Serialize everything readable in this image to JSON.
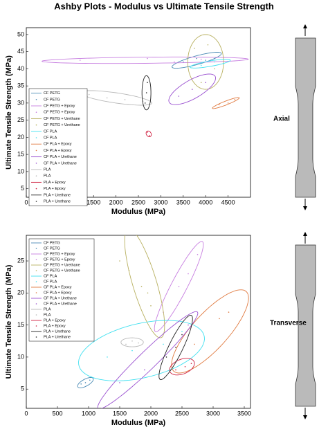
{
  "title": "Ashby Plots - Modulus vs Ultimate Tensile Strength",
  "chart_data": [
    {
      "type": "scatter",
      "label": "Axial",
      "x_label": "Modulus (MPa)",
      "y_label": "Ultimate Tensile Strength (MPa)",
      "xlim": [
        0,
        5000
      ],
      "ylim": [
        2.5,
        52
      ],
      "xticks": [
        0,
        500,
        1000,
        1500,
        2000,
        2500,
        3000,
        3500,
        4000,
        4500
      ],
      "yticks": [
        5,
        10,
        15,
        20,
        25,
        30,
        35,
        40,
        45,
        50
      ],
      "series": [
        {
          "name": "CF PETG",
          "color": "#4a8ab5",
          "x": [
            3500,
            3800,
            4000,
            4200
          ],
          "values": [
            42,
            43,
            42.5,
            43
          ],
          "ellipse": {
            "cx": 3800,
            "cy": 42.5,
            "ax": 550,
            "ay": 2,
            "bx": -30,
            "by": 1.2
          }
        },
        {
          "name": "CF PETG + Epoxy",
          "color": "#c77ee0",
          "x": [
            1200,
            2700,
            3300,
            3900
          ],
          "values": [
            42.5,
            43,
            42,
            42.8
          ],
          "ellipse": {
            "cx": 2650,
            "cy": 42.5,
            "ax": 2300,
            "ay": 0.3,
            "bx": 0,
            "by": 0.9
          }
        },
        {
          "name": "CF PETG + Urethane",
          "color": "#b8b060",
          "x": [
            3750,
            4050,
            4200,
            3900
          ],
          "values": [
            46,
            47,
            40,
            36
          ],
          "ellipse": {
            "cx": 4000,
            "cy": 42,
            "ax": 400,
            "ay": 0,
            "bx": 0,
            "by": 8
          }
        },
        {
          "name": "CF PLA",
          "color": "#40e0f0",
          "x": [
            3900,
            4200,
            4400
          ],
          "values": [
            41,
            42,
            41.5
          ],
          "ellipse": {
            "cx": 4100,
            "cy": 41.5,
            "ax": 450,
            "ay": 1,
            "bx": 0,
            "by": 0.8
          }
        },
        {
          "name": "CF PLA + Epoxy",
          "color": "#e07a40",
          "x": [
            4300,
            4500,
            4650
          ],
          "values": [
            29.5,
            30,
            31
          ],
          "ellipse": {
            "cx": 4450,
            "cy": 30,
            "ax": 300,
            "ay": 1.5,
            "bx": 0,
            "by": 0.6
          }
        },
        {
          "name": "CF PLA + Urethane",
          "color": "#9a50d0",
          "x": [
            3400,
            3700,
            4000
          ],
          "values": [
            32,
            34,
            36
          ],
          "ellipse": {
            "cx": 3700,
            "cy": 34,
            "ax": 500,
            "ay": 4,
            "bx": -150,
            "by": 2
          }
        },
        {
          "name": "PLA",
          "color": "#b8b8b8",
          "x": [
            1400,
            1800,
            2200,
            2600
          ],
          "values": [
            32.5,
            31.5,
            31,
            30.5
          ],
          "ellipse": {
            "cx": 2000,
            "cy": 31.5,
            "ax": 800,
            "ay": -1.5,
            "bx": 0,
            "by": 1.5
          }
        },
        {
          "name": "PLA + Epoxy",
          "color": "#d02040",
          "x": [
            2700,
            2750
          ],
          "values": [
            21.5,
            20.5
          ],
          "ellipse": {
            "cx": 2730,
            "cy": 21,
            "ax": 50,
            "ay": -0.6,
            "bx": 30,
            "by": 0.6
          }
        },
        {
          "name": "PLA + Urethane",
          "color": "#202020",
          "x": [
            2650,
            2700,
            2680
          ],
          "values": [
            30,
            36,
            33
          ],
          "ellipse": {
            "cx": 2680,
            "cy": 33,
            "ax": 0,
            "ay": 5,
            "bx": 100,
            "by": 0
          }
        }
      ]
    },
    {
      "type": "scatter",
      "label": "Transverse",
      "x_label": "Modulus (MPa)",
      "y_label": "Ultimate Tensile Strength (MPa)",
      "xlim": [
        0,
        3600
      ],
      "ylim": [
        2,
        29
      ],
      "xticks": [
        0,
        500,
        1000,
        1500,
        2000,
        2500,
        3000,
        3500
      ],
      "yticks": [
        5,
        10,
        15,
        20,
        25
      ],
      "series": [
        {
          "name": "CF PETG",
          "color": "#4a8ab5",
          "x": [
            880,
            950,
            1020
          ],
          "values": [
            5.8,
            6,
            6.4
          ],
          "ellipse": {
            "cx": 950,
            "cy": 6,
            "ax": 120,
            "ay": 0.7,
            "bx": -40,
            "by": 0.4
          }
        },
        {
          "name": "CF PETG + Epoxy",
          "color": "#c77ee0",
          "x": [
            2200,
            2450,
            2600,
            2750
          ],
          "values": [
            17,
            21,
            23,
            26
          ],
          "ellipse": {
            "cx": 2450,
            "cy": 21,
            "ax": 380,
            "ay": 7,
            "bx": -100,
            "by": 0.8
          }
        },
        {
          "name": "CF PETG + Urethane",
          "color": "#b8b060",
          "x": [
            1500,
            1650,
            1850,
            1950,
            2000
          ],
          "values": [
            25,
            23.5,
            21,
            20,
            18
          ],
          "ellipse": {
            "cx": 1900,
            "cy": 21.5,
            "ax": -250,
            "ay": 8.5,
            "bx": 200,
            "by": 0
          }
        },
        {
          "name": "CF PLA",
          "color": "#40e0f0",
          "x": [
            1300,
            1700,
            2200,
            2500
          ],
          "values": [
            10,
            11,
            12,
            14
          ],
          "ellipse": {
            "cx": 1850,
            "cy": 11,
            "ax": 1000,
            "ay": 2.5,
            "bx": -150,
            "by": 4
          }
        },
        {
          "name": "CF PLA + Epoxy",
          "color": "#e07a40",
          "x": [
            2700,
            3100,
            3250
          ],
          "values": [
            12,
            16,
            17
          ],
          "ellipse": {
            "cx": 2950,
            "cy": 14,
            "ax": 600,
            "ay": 6,
            "bx": -150,
            "by": 2.5
          }
        },
        {
          "name": "CF PLA + Urethane",
          "color": "#9a50d0",
          "x": [
            1500,
            1900,
            2300,
            2600
          ],
          "values": [
            6,
            8,
            12,
            15
          ],
          "ellipse": {
            "cx": 1950,
            "cy": 9.5,
            "ax": 800,
            "ay": 7.5,
            "bx": -80,
            "by": 1.2
          }
        },
        {
          "name": "PLA",
          "color": "#b8b8b8",
          "x": [
            1600,
            1700,
            1800
          ],
          "values": [
            12,
            12.5,
            12.2
          ],
          "ellipse": {
            "cx": 1700,
            "cy": 12.3,
            "ax": 180,
            "ay": 0,
            "bx": 0,
            "by": 0.7
          }
        },
        {
          "name": "PLA + Epoxy",
          "color": "#d02040",
          "x": [
            2400,
            2550,
            2650
          ],
          "values": [
            8,
            8.5,
            9
          ],
          "ellipse": {
            "cx": 2500,
            "cy": 8.5,
            "ax": 200,
            "ay": 0.5,
            "bx": 0,
            "by": 1.2
          }
        },
        {
          "name": "PLA + Urethane",
          "color": "#202020",
          "x": [
            2250,
            2400,
            2500
          ],
          "values": [
            10,
            11.5,
            13.5
          ],
          "ellipse": {
            "cx": 2400,
            "cy": 11.5,
            "ax": 250,
            "ay": 5,
            "bx": -100,
            "by": 0.5
          }
        }
      ]
    }
  ]
}
